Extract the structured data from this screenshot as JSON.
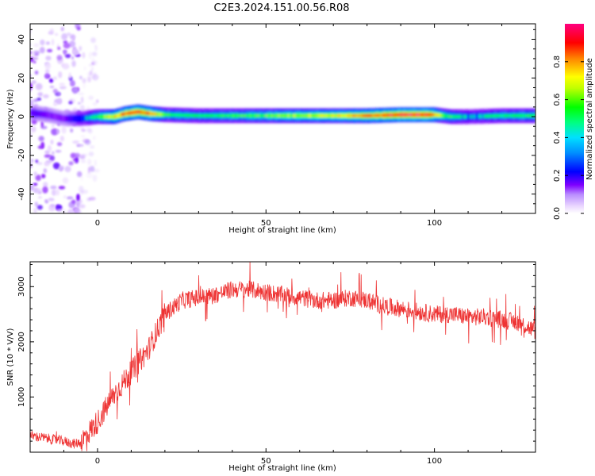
{
  "figure_title": "C2E3.2024.151.00.56.R08",
  "chart_data": [
    {
      "type": "heatmap",
      "xlabel": "Height of straight line (km)",
      "ylabel": "Frequency (Hz)",
      "xlim": [
        -20,
        130
      ],
      "ylim": [
        -50,
        48
      ],
      "x_ticks": [
        0,
        50,
        100
      ],
      "y_ticks": [
        -40,
        -20,
        0,
        20,
        40
      ],
      "grid": false,
      "colorbar": {
        "label": "Normalized spectral amplitude",
        "range": [
          0,
          1
        ],
        "ticks": [
          "0.0",
          "0.2",
          "0.4",
          "0.6",
          "0.8"
        ],
        "colormap": [
          "#ffffff",
          "#d8b4fe",
          "#7f00ff",
          "#0000ff",
          "#00bfff",
          "#00ffb0",
          "#00ff00",
          "#ffff00",
          "#ff8000",
          "#ff0000",
          "#ff0080"
        ]
      },
      "band": {
        "description": "frequency ridge near 0 Hz",
        "center_hz": [
          [
            -20,
            2
          ],
          [
            -15,
            1
          ],
          [
            -10,
            -1
          ],
          [
            -5,
            -1
          ],
          [
            0,
            0
          ],
          [
            5,
            0
          ],
          [
            8,
            1.5
          ],
          [
            12,
            2.5
          ],
          [
            16,
            1.5
          ],
          [
            20,
            1
          ],
          [
            30,
            0.5
          ],
          [
            40,
            0.5
          ],
          [
            50,
            0.5
          ],
          [
            60,
            0.5
          ],
          [
            70,
            0.5
          ],
          [
            80,
            0.5
          ],
          [
            90,
            1
          ],
          [
            100,
            1
          ],
          [
            105,
            0
          ],
          [
            110,
            0
          ],
          [
            120,
            0.5
          ],
          [
            130,
            0.5
          ]
        ],
        "peak_amplitude": [
          [
            -20,
            0.3
          ],
          [
            -10,
            0.25
          ],
          [
            0,
            0.55
          ],
          [
            5,
            0.75
          ],
          [
            10,
            0.9
          ],
          [
            15,
            0.85
          ],
          [
            20,
            0.55
          ],
          [
            30,
            0.5
          ],
          [
            40,
            0.55
          ],
          [
            50,
            0.6
          ],
          [
            60,
            0.65
          ],
          [
            70,
            0.7
          ],
          [
            80,
            0.8
          ],
          [
            90,
            0.95
          ],
          [
            98,
            0.95
          ],
          [
            102,
            0.6
          ],
          [
            110,
            0.45
          ],
          [
            120,
            0.5
          ],
          [
            130,
            0.55
          ]
        ]
      },
      "noise_region_x": [
        -20,
        -5
      ]
    },
    {
      "type": "line",
      "xlabel": "Height of straight line (km)",
      "ylabel": "SNR (10 * V/V)",
      "xlim": [
        -20,
        130
      ],
      "ylim": [
        0,
        3450
      ],
      "x_ticks": [
        0,
        50,
        100
      ],
      "y_ticks": [
        1000,
        2000,
        3000
      ],
      "grid": false,
      "series": [
        {
          "color": "#ee3333",
          "x": [
            -20,
            -15,
            -10,
            -7,
            -5,
            0,
            5,
            10,
            15,
            20,
            25,
            30,
            35,
            40,
            45,
            50,
            55,
            60,
            65,
            70,
            75,
            80,
            85,
            90,
            95,
            100,
            105,
            110,
            115,
            120,
            125,
            130
          ],
          "y": [
            300,
            250,
            200,
            150,
            180,
            550,
            1050,
            1450,
            1850,
            2500,
            2750,
            2800,
            2850,
            2950,
            2950,
            2900,
            2850,
            2800,
            2750,
            2750,
            2800,
            2750,
            2650,
            2600,
            2550,
            2500,
            2500,
            2450,
            2450,
            2400,
            2350,
            2200
          ]
        }
      ]
    }
  ]
}
